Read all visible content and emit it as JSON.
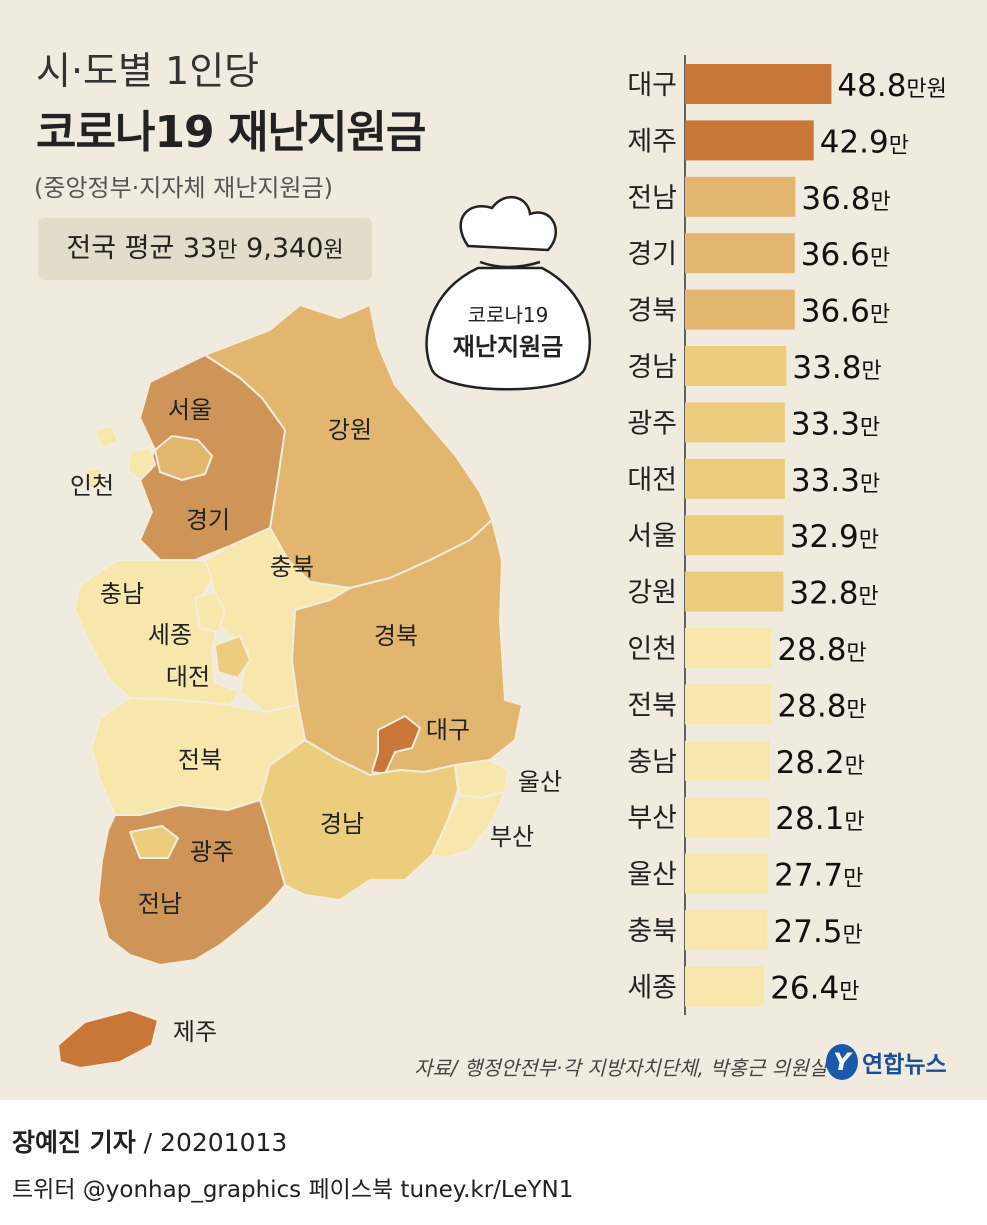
{
  "title_line1": "시·도별 1인당",
  "title_line2": "코로나19 재난지원금",
  "subtitle": "(중앙정부·지자체 재난지원금)",
  "national_average": {
    "label": "전국 평균 33",
    "unit1": "만",
    "amount": "9,340",
    "unit2": "원"
  },
  "money_bag": {
    "line1": "코로나19",
    "line2": "재난지원금"
  },
  "map_labels": {
    "seoul": "서울",
    "incheon": "인천",
    "gyeonggi": "경기",
    "gangwon": "강원",
    "chungbuk": "충북",
    "chungnam": "충남",
    "sejong": "세종",
    "daejeon": "대전",
    "gyeongbuk": "경북",
    "daegu": "대구",
    "ulsan": "울산",
    "busan": "부산",
    "jeonbuk": "전북",
    "gyeongnam": "경남",
    "gwangju": "광주",
    "jeonnam": "전남",
    "jeju": "제주"
  },
  "colors": {
    "tier1": "#c87739",
    "tier2": "#e2b66f",
    "tier3": "#eccd7e",
    "tier4": "#f8e7ad",
    "background": "#f1ebdf"
  },
  "chart_data": {
    "type": "bar",
    "orientation": "horizontal",
    "unit": "만원",
    "categories": [
      "대구",
      "제주",
      "전남",
      "경기",
      "경북",
      "경남",
      "광주",
      "대전",
      "서울",
      "강원",
      "인천",
      "전북",
      "충남",
      "부산",
      "울산",
      "충북",
      "세종"
    ],
    "values": [
      48.8,
      42.9,
      36.8,
      36.6,
      36.6,
      33.8,
      33.3,
      33.3,
      32.9,
      32.8,
      28.8,
      28.8,
      28.2,
      28.1,
      27.7,
      27.5,
      26.4
    ],
    "value_labels": [
      "48.8",
      "42.9",
      "36.8",
      "36.6",
      "36.6",
      "33.8",
      "33.3",
      "33.3",
      "32.9",
      "32.8",
      "28.8",
      "28.8",
      "28.2",
      "28.1",
      "27.7",
      "27.5",
      "26.4"
    ],
    "unit_labels": [
      "만원",
      "만",
      "만",
      "만",
      "만",
      "만",
      "만",
      "만",
      "만",
      "만",
      "만",
      "만",
      "만",
      "만",
      "만",
      "만",
      "만"
    ]
  },
  "source": "자료/ 행정안전부·각 지방자치단체, 박홍근 의원실",
  "logo": {
    "mark": "Y",
    "text": "연합뉴스"
  },
  "reporter": {
    "name": "장예진 기자",
    "date": "/ 20201013"
  },
  "social": "트위터 @yonhap_graphics  페이스북 tuney.kr/LeYN1"
}
